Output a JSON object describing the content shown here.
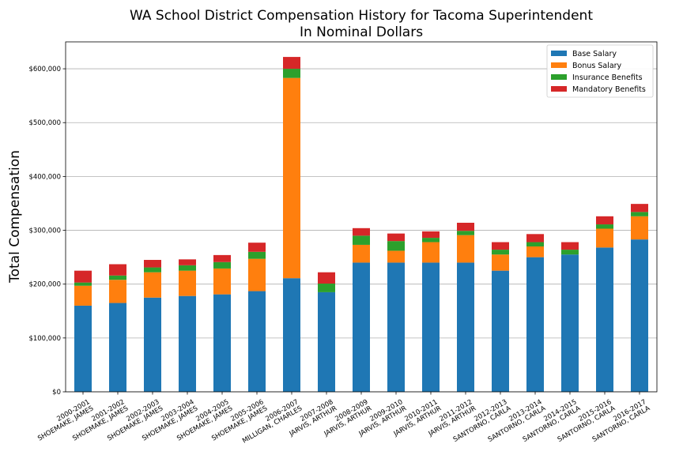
{
  "chart_data": {
    "type": "bar",
    "stacked": true,
    "title_line1": "WA School District Compensation History for Tacoma Superintendent",
    "title_line2": "In Nominal Dollars",
    "xlabel": "",
    "ylabel": "Total Compensation",
    "ylim": [
      0,
      650000
    ],
    "yticks": [
      0,
      100000,
      200000,
      300000,
      400000,
      500000,
      600000
    ],
    "ytick_labels": [
      "$0",
      "$100,000",
      "$200,000",
      "$300,000",
      "$400,000",
      "$500,000",
      "$600,000"
    ],
    "grid": "horizontal",
    "legend_position": "top-right",
    "categories": [
      [
        "2000-2001",
        "SHOEMAKE, JAMES"
      ],
      [
        "2001-2002",
        "SHOEMAKE, JAMES"
      ],
      [
        "2002-2003",
        "SHOEMAKE, JAMES"
      ],
      [
        "2003-2004",
        "SHOEMAKE, JAMES"
      ],
      [
        "2004-2005",
        "SHOEMAKE, JAMES"
      ],
      [
        "2005-2006",
        "SHOEMAKE, JAMES"
      ],
      [
        "2006-2007",
        "MILLIGAN, CHARLES"
      ],
      [
        "2007-2008",
        "JARVIS, ARTHUR"
      ],
      [
        "2008-2009",
        "JARVIS, ARTHUR"
      ],
      [
        "2009-2010",
        "JARVIS, ARTHUR"
      ],
      [
        "2010-2011",
        "JARVIS, ARTHUR"
      ],
      [
        "2011-2012",
        "JARVIS, ARTHUR"
      ],
      [
        "2012-2013",
        "SANTORNO, CARLA"
      ],
      [
        "2013-2014",
        "SANTORNO, CARLA"
      ],
      [
        "2014-2015",
        "SANTORNO, CARLA"
      ],
      [
        "2015-2016",
        "SANTORNO, CARLA"
      ],
      [
        "2016-2017",
        "SANTORNO, CARLA"
      ]
    ],
    "series": [
      {
        "name": "Base Salary",
        "color": "#1f77b4",
        "values": [
          160000,
          165000,
          175000,
          178000,
          181000,
          187000,
          211000,
          185000,
          240000,
          240000,
          240000,
          240000,
          225000,
          250000,
          255000,
          268000,
          283000
        ]
      },
      {
        "name": "Bonus Salary",
        "color": "#ff7f0e",
        "values": [
          37000,
          43000,
          47000,
          47000,
          48000,
          60000,
          372000,
          0,
          33000,
          22000,
          38000,
          51000,
          30000,
          20000,
          0,
          35000,
          43000
        ]
      },
      {
        "name": "Insurance Benefits",
        "color": "#2ca02c",
        "values": [
          6000,
          8000,
          9000,
          10000,
          12000,
          13000,
          17000,
          16000,
          17000,
          18000,
          8000,
          8000,
          9000,
          8000,
          9000,
          8000,
          8000
        ]
      },
      {
        "name": "Mandatory Benefits",
        "color": "#d62728",
        "values": [
          22000,
          21000,
          14000,
          11000,
          13000,
          17000,
          22000,
          21000,
          14000,
          14000,
          12000,
          15000,
          14000,
          15000,
          14000,
          15000,
          15000
        ]
      }
    ]
  }
}
